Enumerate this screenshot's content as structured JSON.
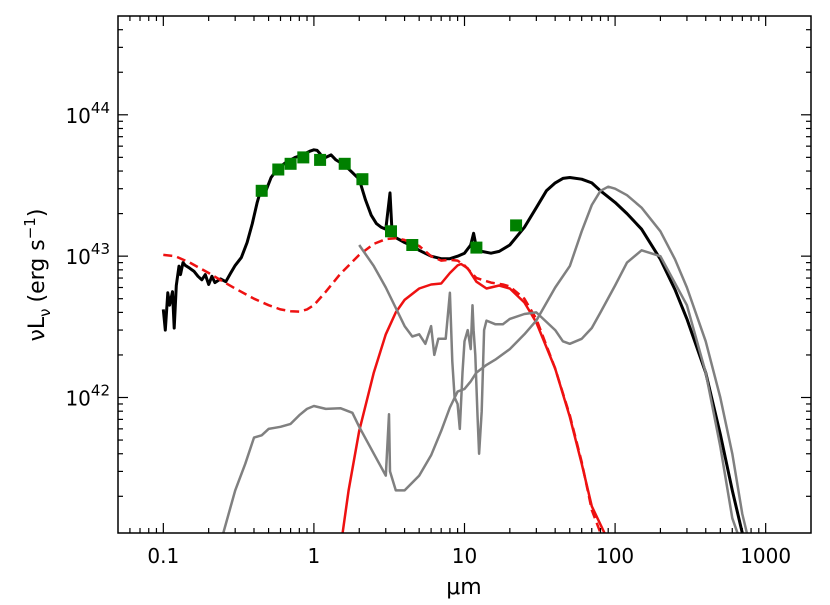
{
  "chart_data": {
    "type": "line",
    "title": "",
    "xlabel": "μm",
    "ylabel_main": "νL",
    "ylabel_sub": "ν",
    "ylabel_units": "(erg s",
    "ylabel_exp": "−1",
    "ylabel_close": ")",
    "xscale": "log",
    "yscale": "log",
    "xlim": [
      0.05,
      2000
    ],
    "ylim": [
      1.1e+41,
      5e+44
    ],
    "grid": false,
    "x_ticks": [
      {
        "value": 0.1,
        "label": "0.1"
      },
      {
        "value": 1,
        "label": "1"
      },
      {
        "value": 10,
        "label": "10"
      },
      {
        "value": 100,
        "label": "100"
      },
      {
        "value": 1000,
        "label": "1000"
      }
    ],
    "y_ticks": [
      {
        "value": 1e+42,
        "base": "10",
        "exp": "42"
      },
      {
        "value": 1e+43,
        "base": "10",
        "exp": "43"
      },
      {
        "value": 1e+44,
        "base": "10",
        "exp": "44"
      }
    ],
    "series": [
      {
        "color": "#000000",
        "style": "solid",
        "width": 3,
        "points": [
          [
            0.1,
            4.2e+42
          ],
          [
            0.103,
            3e+42
          ],
          [
            0.107,
            5.5e+42
          ],
          [
            0.11,
            4.5e+42
          ],
          [
            0.115,
            5.6e+42
          ],
          [
            0.118,
            3.1e+42
          ],
          [
            0.122,
            6.2e+42
          ],
          [
            0.127,
            8.5e+42
          ],
          [
            0.13,
            7.4e+42
          ],
          [
            0.135,
            9e+42
          ],
          [
            0.14,
            8.6e+42
          ],
          [
            0.15,
            8.2e+42
          ],
          [
            0.16,
            7.8e+42
          ],
          [
            0.17,
            7.2e+42
          ],
          [
            0.18,
            6.8e+42
          ],
          [
            0.19,
            7.4e+42
          ],
          [
            0.2,
            6.3e+42
          ],
          [
            0.21,
            7.2e+42
          ],
          [
            0.22,
            6.5e+42
          ],
          [
            0.24,
            6.9e+42
          ],
          [
            0.26,
            6.6e+42
          ],
          [
            0.28,
            7.6e+42
          ],
          [
            0.3,
            8.6e+42
          ],
          [
            0.33,
            9.8e+42
          ],
          [
            0.36,
            1.25e+43
          ],
          [
            0.39,
            1.7e+43
          ],
          [
            0.42,
            2.4e+43
          ],
          [
            0.45,
            3.1e+43
          ],
          [
            0.48,
            2.9e+43
          ],
          [
            0.52,
            3.6e+43
          ],
          [
            0.56,
            4e+43
          ],
          [
            0.6,
            4.3e+43
          ],
          [
            0.65,
            4.6e+43
          ],
          [
            0.7,
            4.8e+43
          ],
          [
            0.75,
            5e+43
          ],
          [
            0.8,
            5.1e+43
          ],
          [
            0.85,
            5.25e+43
          ],
          [
            0.9,
            5.4e+43
          ],
          [
            0.95,
            5.55e+43
          ],
          [
            1.0,
            5.65e+43
          ],
          [
            1.05,
            5.6e+43
          ],
          [
            1.1,
            5.3e+43
          ],
          [
            1.15,
            4.9e+43
          ],
          [
            1.2,
            5e+43
          ],
          [
            1.3,
            5.2e+43
          ],
          [
            1.4,
            4.8e+43
          ],
          [
            1.6,
            4.4e+43
          ],
          [
            1.8,
            3.9e+43
          ],
          [
            2.0,
            3.5e+43
          ],
          [
            2.2,
            2.5e+43
          ],
          [
            2.4,
            1.95e+43
          ],
          [
            2.6,
            1.7e+43
          ],
          [
            2.8,
            1.6e+43
          ],
          [
            3.0,
            1.55e+43
          ],
          [
            3.2,
            2.8e+43
          ],
          [
            3.3,
            1.5e+43
          ],
          [
            3.5,
            1.35e+43
          ],
          [
            4.0,
            1.25e+43
          ],
          [
            4.5,
            1.18e+43
          ],
          [
            5.0,
            1.1e+43
          ],
          [
            6.0,
            1e+43
          ],
          [
            7.0,
            9.6e+42
          ],
          [
            8.0,
            9.6e+42
          ],
          [
            9.0,
            1e+43
          ],
          [
            10,
            1.05e+43
          ],
          [
            11,
            1.2e+43
          ],
          [
            11.5,
            1.45e+43
          ],
          [
            12,
            1.15e+43
          ],
          [
            13,
            1.08e+43
          ],
          [
            15,
            1.05e+43
          ],
          [
            17,
            1.08e+43
          ],
          [
            20,
            1.2e+43
          ],
          [
            25,
            1.6e+43
          ],
          [
            30,
            2.2e+43
          ],
          [
            35,
            2.9e+43
          ],
          [
            40,
            3.3e+43
          ],
          [
            45,
            3.55e+43
          ],
          [
            50,
            3.6e+43
          ],
          [
            60,
            3.5e+43
          ],
          [
            70,
            3.3e+43
          ],
          [
            80,
            2.9e+43
          ],
          [
            100,
            2.4e+43
          ],
          [
            120,
            2e+43
          ],
          [
            150,
            1.55e+43
          ],
          [
            200,
            9.5e+42
          ],
          [
            250,
            5.8e+42
          ],
          [
            300,
            3.6e+42
          ],
          [
            400,
            1.5e+42
          ],
          [
            500,
            5.5e+41
          ],
          [
            600,
            2.2e+41
          ],
          [
            700,
            1.1e+41
          ]
        ]
      },
      {
        "color": "#ee1111",
        "style": "dashed",
        "width": 2.5,
        "points": [
          [
            0.1,
            1.02e+43
          ],
          [
            0.12,
            1e+43
          ],
          [
            0.15,
            9e+42
          ],
          [
            0.2,
            7.6e+42
          ],
          [
            0.25,
            6.6e+42
          ],
          [
            0.3,
            5.9e+42
          ],
          [
            0.4,
            5e+42
          ],
          [
            0.5,
            4.5e+42
          ],
          [
            0.6,
            4.2e+42
          ],
          [
            0.7,
            4.08e+42
          ],
          [
            0.8,
            4.05e+42
          ],
          [
            0.9,
            4.2e+42
          ],
          [
            1.0,
            4.5e+42
          ],
          [
            1.2,
            5.6e+42
          ],
          [
            1.5,
            7.5e+42
          ],
          [
            2.0,
            1.02e+43
          ],
          [
            2.5,
            1.22e+43
          ],
          [
            3.0,
            1.32e+43
          ],
          [
            3.5,
            1.34e+43
          ],
          [
            4.0,
            1.3e+43
          ],
          [
            5.0,
            1.18e+43
          ],
          [
            6.0,
            1e+43
          ],
          [
            7.0,
            9.3e+42
          ],
          [
            8.0,
            9.4e+42
          ],
          [
            9.0,
            9.3e+42
          ],
          [
            10,
            8.6e+42
          ],
          [
            12,
            7e+42
          ],
          [
            15,
            6.5e+42
          ],
          [
            18,
            6.3e+42
          ],
          [
            20,
            6.1e+42
          ],
          [
            25,
            5e+42
          ],
          [
            30,
            3.6e+42
          ],
          [
            40,
            1.6e+42
          ],
          [
            50,
            7.5e+41
          ],
          [
            60,
            3.5e+41
          ],
          [
            70,
            1.6e+41
          ],
          [
            80,
            1.1e+41
          ]
        ]
      },
      {
        "color": "#ee1111",
        "style": "solid",
        "width": 2.5,
        "points": [
          [
            1.55,
            1.1e+41
          ],
          [
            1.7,
            2.2e+41
          ],
          [
            2.0,
            5.8e+41
          ],
          [
            2.5,
            1.5e+42
          ],
          [
            3.0,
            2.8e+42
          ],
          [
            3.5,
            4e+42
          ],
          [
            4.0,
            4.9e+42
          ],
          [
            5.0,
            5.9e+42
          ],
          [
            6.0,
            6.3e+42
          ],
          [
            7.0,
            6.4e+42
          ],
          [
            8.0,
            7.6e+42
          ],
          [
            9.0,
            8.6e+42
          ],
          [
            9.5,
            8.8e+42
          ],
          [
            10.5,
            8.2e+42
          ],
          [
            12,
            6.6e+42
          ],
          [
            14,
            5.9e+42
          ],
          [
            17,
            6.2e+42
          ],
          [
            20,
            5.9e+42
          ],
          [
            25,
            4.7e+42
          ],
          [
            30,
            3.4e+42
          ],
          [
            40,
            1.6e+42
          ],
          [
            50,
            7.3e+41
          ],
          [
            60,
            3.4e+41
          ],
          [
            70,
            1.7e+41
          ],
          [
            85,
            1.1e+41
          ]
        ]
      },
      {
        "color": "#808080",
        "style": "solid",
        "width": 2.5,
        "points": [
          [
            0.25,
            1.1e+41
          ],
          [
            0.3,
            2.2e+41
          ],
          [
            0.35,
            3.4e+41
          ],
          [
            0.4,
            5.2e+41
          ],
          [
            0.45,
            5.4e+41
          ],
          [
            0.5,
            6e+41
          ],
          [
            0.55,
            6.1e+41
          ],
          [
            0.6,
            6.2e+41
          ],
          [
            0.7,
            6.5e+41
          ],
          [
            0.8,
            7.5e+41
          ],
          [
            0.9,
            8.3e+41
          ],
          [
            1.0,
            8.7e+41
          ],
          [
            1.2,
            8.3e+41
          ],
          [
            1.5,
            8.4e+41
          ],
          [
            1.8,
            7.8e+41
          ],
          [
            2.0,
            6.2e+41
          ],
          [
            2.5,
            4e+41
          ],
          [
            3.0,
            2.8e+41
          ],
          [
            3.15,
            7.6e+41
          ],
          [
            3.2,
            3e+41
          ],
          [
            3.5,
            2.2e+41
          ],
          [
            4.0,
            2.2e+41
          ],
          [
            5.0,
            2.8e+41
          ],
          [
            6.0,
            3.9e+41
          ],
          [
            7.0,
            5.8e+41
          ],
          [
            8.0,
            8.5e+41
          ],
          [
            9.0,
            1.1e+42
          ],
          [
            10,
            1.15e+42
          ],
          [
            11,
            1.3e+42
          ],
          [
            12,
            1.5e+42
          ],
          [
            14,
            1.7e+42
          ],
          [
            16,
            1.85e+42
          ],
          [
            20,
            2.2e+42
          ],
          [
            25,
            2.8e+42
          ],
          [
            30,
            3.5e+42
          ],
          [
            40,
            6e+42
          ],
          [
            50,
            8.5e+42
          ],
          [
            60,
            1.5e+43
          ],
          [
            70,
            2.3e+43
          ],
          [
            80,
            2.9e+43
          ],
          [
            90,
            3.1e+43
          ],
          [
            100,
            3e+43
          ],
          [
            120,
            2.7e+43
          ],
          [
            150,
            2.2e+43
          ],
          [
            200,
            1.5e+43
          ],
          [
            250,
            9.5e+42
          ],
          [
            300,
            6e+42
          ],
          [
            400,
            2.5e+42
          ],
          [
            500,
            1e+42
          ],
          [
            600,
            4e+41
          ],
          [
            700,
            1.5e+41
          ],
          [
            750,
            1.1e+41
          ]
        ]
      },
      {
        "color": "#808080",
        "style": "solid",
        "width": 2.5,
        "points": [
          [
            2.0,
            1.2e+43
          ],
          [
            2.5,
            8.5e+42
          ],
          [
            3.0,
            6e+42
          ],
          [
            3.5,
            4.3e+42
          ],
          [
            4.0,
            3.2e+42
          ],
          [
            4.5,
            2.7e+42
          ],
          [
            5.0,
            2.8e+42
          ],
          [
            5.5,
            2.4e+42
          ],
          [
            6.0,
            3.2e+42
          ],
          [
            6.3,
            2e+42
          ],
          [
            6.7,
            2.6e+42
          ],
          [
            7.5,
            2.6e+42
          ],
          [
            8.0,
            5.5e+42
          ],
          [
            8.3,
            1.8e+42
          ],
          [
            8.6,
            1e+42
          ],
          [
            9.0,
            9e+41
          ],
          [
            9.3,
            6e+41
          ],
          [
            9.7,
            1.5e+42
          ],
          [
            10,
            2.5e+42
          ],
          [
            10.5,
            3e+42
          ],
          [
            11,
            2.2e+42
          ],
          [
            11.3,
            4.5e+42
          ],
          [
            11.5,
            3e+42
          ],
          [
            11.8,
            2e+42
          ],
          [
            12.2,
            7.5e+41
          ],
          [
            12.5,
            4e+41
          ],
          [
            13,
            8e+41
          ],
          [
            13.5,
            3e+42
          ],
          [
            14,
            3.5e+42
          ],
          [
            16,
            3.3e+42
          ],
          [
            18,
            3.3e+42
          ],
          [
            20,
            3.6e+42
          ],
          [
            25,
            3.9e+42
          ],
          [
            30,
            4e+42
          ],
          [
            40,
            3e+42
          ],
          [
            45,
            2.5e+42
          ],
          [
            50,
            2.4e+42
          ],
          [
            60,
            2.6e+42
          ],
          [
            70,
            3.1e+42
          ],
          [
            80,
            4e+42
          ],
          [
            100,
            6.2e+42
          ],
          [
            120,
            9e+42
          ],
          [
            150,
            1.1e+43
          ],
          [
            200,
            1e+43
          ],
          [
            300,
            4.5e+42
          ],
          [
            400,
            1.5e+42
          ],
          [
            500,
            4.5e+41
          ],
          [
            600,
            1.4e+41
          ],
          [
            650,
            1.1e+41
          ]
        ]
      }
    ],
    "markers": {
      "color": "#008000",
      "shape": "square",
      "points": [
        [
          0.45,
          2.9e+43
        ],
        [
          0.58,
          4.1e+43
        ],
        [
          0.7,
          4.5e+43
        ],
        [
          0.85,
          5e+43
        ],
        [
          1.1,
          4.8e+43
        ],
        [
          1.6,
          4.5e+43
        ],
        [
          2.1,
          3.5e+43
        ],
        [
          3.25,
          1.5e+43
        ],
        [
          4.5,
          1.2e+43
        ],
        [
          12,
          1.15e+43
        ],
        [
          22,
          1.65e+43
        ]
      ]
    }
  }
}
